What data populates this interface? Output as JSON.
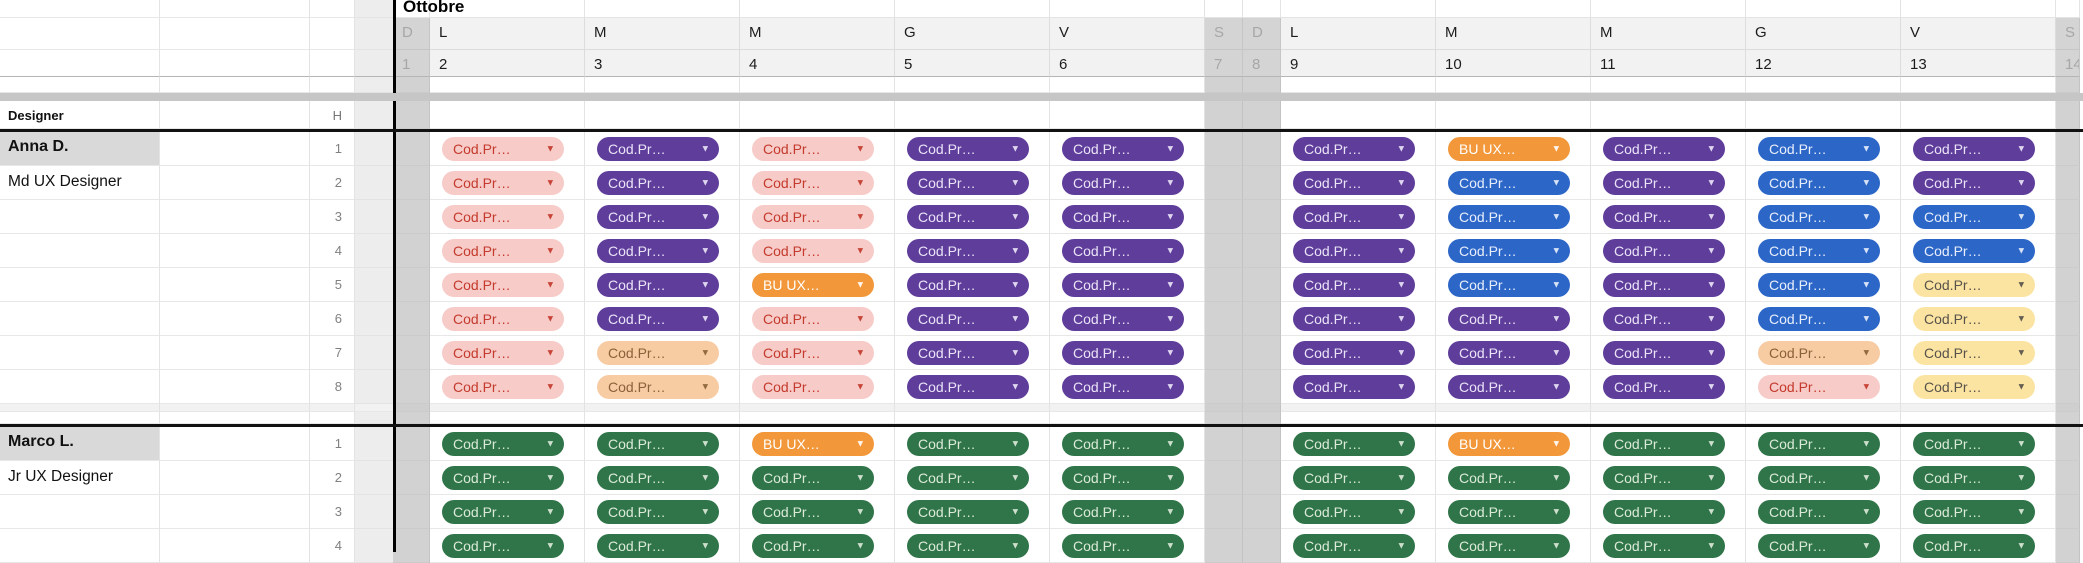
{
  "month_title": "Ottobre",
  "left_header": {
    "label": "Designer",
    "hours_label": "H"
  },
  "calendar": {
    "days": [
      {
        "letter": "D",
        "date": "1",
        "weekend": true
      },
      {
        "letter": "L",
        "date": "2",
        "weekend": false
      },
      {
        "letter": "M",
        "date": "3",
        "weekend": false
      },
      {
        "letter": "M",
        "date": "4",
        "weekend": false
      },
      {
        "letter": "G",
        "date": "5",
        "weekend": false
      },
      {
        "letter": "V",
        "date": "6",
        "weekend": false
      },
      {
        "letter": "S",
        "date": "7",
        "weekend": true
      },
      {
        "letter": "D",
        "date": "8",
        "weekend": true
      },
      {
        "letter": "L",
        "date": "9",
        "weekend": false
      },
      {
        "letter": "M",
        "date": "10",
        "weekend": false
      },
      {
        "letter": "M",
        "date": "11",
        "weekend": false
      },
      {
        "letter": "G",
        "date": "12",
        "weekend": false
      },
      {
        "letter": "V",
        "date": "13",
        "weekend": false
      },
      {
        "letter": "S",
        "date": "14",
        "weekend": true
      }
    ]
  },
  "chip_labels": {
    "default": "Cod.Pr…",
    "bu": "BU UX…"
  },
  "chip_colors": {
    "pink": {
      "bg": "#F6CBC8",
      "fg": "#C43A2C"
    },
    "purple": {
      "bg": "#5E3D9B",
      "fg": "#EBE4F7"
    },
    "blue": {
      "bg": "#2C67C8",
      "fg": "#E8EEFA"
    },
    "orange": {
      "bg": "#F2983B",
      "fg": "#FFFFFF"
    },
    "peach": {
      "bg": "#F7CCA3",
      "fg": "#8A623A"
    },
    "yellow": {
      "bg": "#FBE4A1",
      "fg": "#57534B"
    },
    "green": {
      "bg": "#2F7549",
      "fg": "#DCEAD9"
    }
  },
  "sections": [
    {
      "name": "Anna D.",
      "role": "Md UX Designer",
      "rows": [
        {
          "n": "1",
          "chips": [
            "pink",
            "purple",
            "pink",
            "purple",
            "purple",
            "purple",
            "orange",
            "purple",
            "blue",
            "purple"
          ]
        },
        {
          "n": "2",
          "chips": [
            "pink",
            "purple",
            "pink",
            "purple",
            "purple",
            "purple",
            "blue",
            "purple",
            "blue",
            "purple"
          ]
        },
        {
          "n": "3",
          "chips": [
            "pink",
            "purple",
            "pink",
            "purple",
            "purple",
            "purple",
            "blue",
            "purple",
            "blue",
            "blue"
          ]
        },
        {
          "n": "4",
          "chips": [
            "pink",
            "purple",
            "pink",
            "purple",
            "purple",
            "purple",
            "blue",
            "purple",
            "blue",
            "blue"
          ]
        },
        {
          "n": "5",
          "chips": [
            "pink",
            "purple",
            "orange",
            "purple",
            "purple",
            "purple",
            "blue",
            "purple",
            "blue",
            "yellow"
          ]
        },
        {
          "n": "6",
          "chips": [
            "pink",
            "purple",
            "pink",
            "purple",
            "purple",
            "purple",
            "purple",
            "purple",
            "blue",
            "yellow"
          ]
        },
        {
          "n": "7",
          "chips": [
            "pink",
            "peach",
            "pink",
            "purple",
            "purple",
            "purple",
            "purple",
            "purple",
            "peach",
            "yellow"
          ]
        },
        {
          "n": "8",
          "chips": [
            "pink",
            "peach",
            "pink",
            "purple",
            "purple",
            "purple",
            "purple",
            "purple",
            "pink",
            "yellow"
          ]
        }
      ]
    },
    {
      "name": "Marco L.",
      "role": "Jr UX Designer",
      "rows": [
        {
          "n": "1",
          "chips": [
            "green",
            "green",
            "orange",
            "green",
            "green",
            "green",
            "orange",
            "green",
            "green",
            "green"
          ]
        },
        {
          "n": "2",
          "chips": [
            "green",
            "green",
            "green",
            "green",
            "green",
            "green",
            "green",
            "green",
            "green",
            "green"
          ]
        },
        {
          "n": "3",
          "chips": [
            "green",
            "green",
            "green",
            "green",
            "green",
            "green",
            "green",
            "green",
            "green",
            "green"
          ]
        },
        {
          "n": "4",
          "chips": [
            "green",
            "green",
            "green",
            "green",
            "green",
            "green",
            "green",
            "green",
            "green",
            "green"
          ]
        }
      ]
    }
  ]
}
